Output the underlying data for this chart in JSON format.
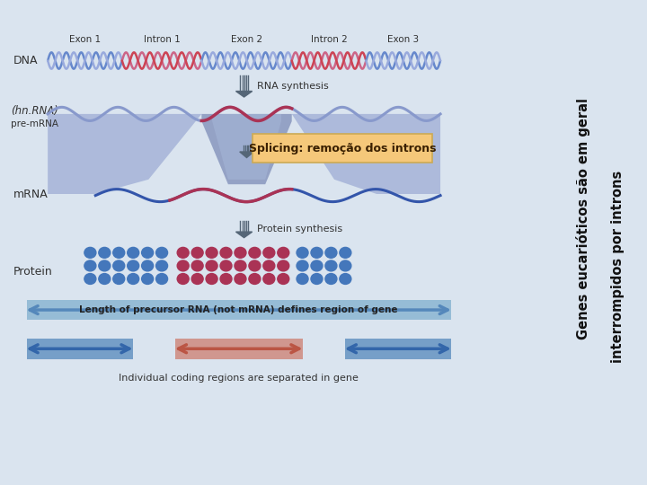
{
  "bg_color": "#dae4ef",
  "right_panel_bg": "#ffffff",
  "title_line1": "Genes eucarióticos são em geral",
  "title_line2": "interrompidos por introns",
  "splicing_label": "Splicing: remoção dos introns",
  "splicing_box_color": "#f5c87a",
  "splicing_text_color": "#3a2000",
  "labels": {
    "dna": "DNA",
    "hn_rna1": "(hn.RNA)",
    "hn_rna2": "pre-mRNA",
    "mrna": "mRNA",
    "protein": "Protein",
    "rna_synthesis": "RNA synthesis",
    "protein_synthesis": "Protein synthesis",
    "exon1": "Exon 1",
    "intron1": "Intron 1",
    "exon2": "Exon 2",
    "intron2": "Intron 2",
    "exon3": "Exon 3",
    "bottom_arrow_text": "Length of precursor RNA (not mRNA) defines region of gene",
    "bottom_text2": "Individual coding regions are separated in gene"
  },
  "colors": {
    "blue_strand1": "#6688cc",
    "blue_strand2": "#99aadd",
    "red_strand1": "#cc6688",
    "red_strand2": "#cc4455",
    "light_blue_wave": "#8899cc",
    "dark_blue_wave": "#3355aa",
    "red_wave": "#aa3355",
    "funnel_left": "#8899bb",
    "funnel_center": "#9999cc",
    "funnel_light": "#ccddee",
    "arrow_gray": "#556677",
    "arrow_blue": "#4477aa",
    "arrow_red": "#cc6655",
    "dot_blue": "#4477bb",
    "dot_red": "#aa3355",
    "big_arrow_blue": "#5588bb"
  }
}
